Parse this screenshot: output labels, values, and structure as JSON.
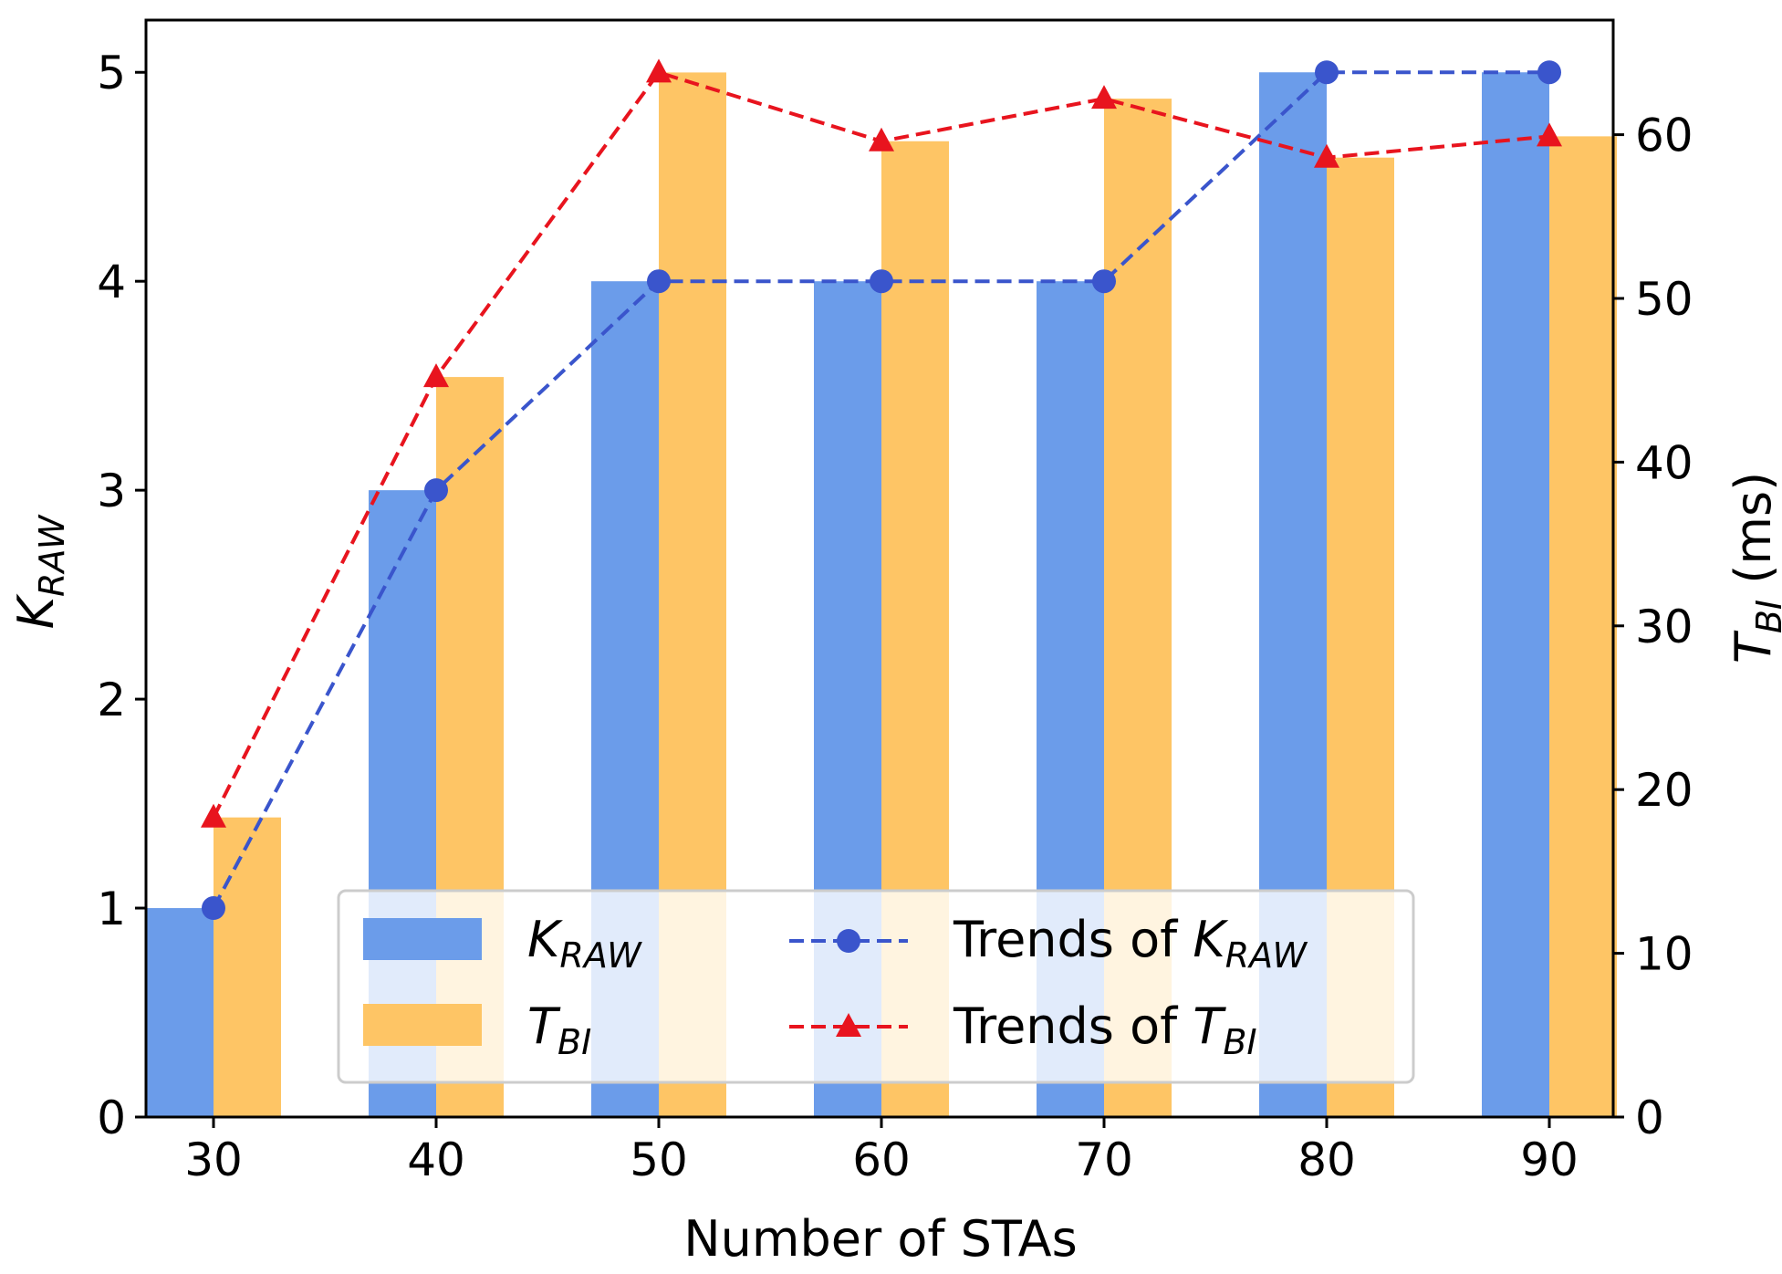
{
  "chart_data": {
    "type": "bar",
    "categories": [
      "30",
      "40",
      "50",
      "60",
      "70",
      "80",
      "90"
    ],
    "xlabel": "Number of STAs",
    "ylabel_left": {
      "base": "K",
      "sub": "RAW"
    },
    "ylabel_right": {
      "base": "T",
      "sub": "BI",
      "suffix": " (ms)"
    },
    "ylim_left": [
      0,
      5.25
    ],
    "ylim_right": [
      0,
      67
    ],
    "yticks_left": [
      0,
      1,
      2,
      3,
      4,
      5
    ],
    "yticks_right": [
      0,
      10,
      20,
      30,
      40,
      50,
      60
    ],
    "colors": {
      "k_raw_bar": "#6b9cea",
      "t_bi_bar": "#fec565",
      "k_raw_trend": "#3a55cc",
      "t_bi_trend": "#e8141e"
    },
    "series": [
      {
        "name": "K_RAW",
        "axis": "left",
        "kind": "bar",
        "values": [
          1,
          3,
          4,
          4,
          4,
          5,
          5
        ]
      },
      {
        "name": "T_BI",
        "axis": "right",
        "kind": "bar",
        "values": [
          18.3,
          45.2,
          63.8,
          59.6,
          62.2,
          58.6,
          59.9
        ]
      },
      {
        "name": "Trends of K_RAW",
        "axis": "left",
        "kind": "line",
        "marker": "circle",
        "values": [
          1,
          3,
          4,
          4,
          4,
          5,
          5
        ]
      },
      {
        "name": "Trends of T_BI",
        "axis": "right",
        "kind": "line",
        "marker": "triangle",
        "values": [
          18.3,
          45.2,
          63.8,
          59.6,
          62.2,
          58.6,
          59.9
        ]
      }
    ],
    "legend": {
      "placement": "lower-center",
      "entries": [
        {
          "base": "K",
          "sub": "RAW",
          "prefix": ""
        },
        {
          "base": "T",
          "sub": "BI",
          "prefix": ""
        },
        {
          "base": "K",
          "sub": "RAW",
          "prefix": "Trends of "
        },
        {
          "base": "T",
          "sub": "BI",
          "prefix": "Trends of "
        }
      ]
    },
    "grid": false
  }
}
